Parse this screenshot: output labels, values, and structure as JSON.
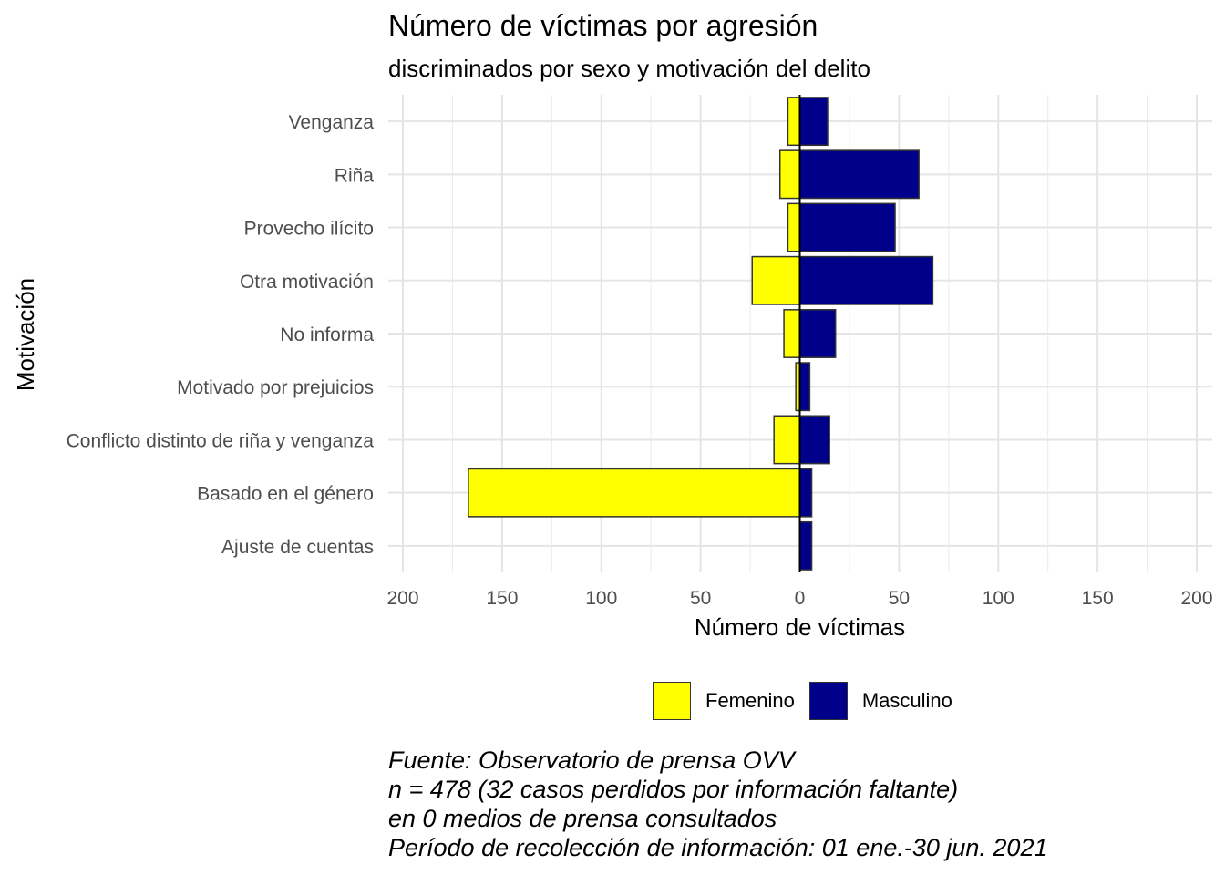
{
  "title": "Número de víctimas por agresión",
  "subtitle": "discriminados por sexo y motivación del delito",
  "chart_data": {
    "type": "bar",
    "orientation": "horizontal-diverging",
    "categories": [
      "Venganza",
      "Riña",
      "Provecho ilícito",
      "Otra motivación",
      "No informa",
      "Motivado por prejuicios",
      "Conflicto distinto de riña y venganza",
      "Basado en el género",
      "Ajuste de cuentas"
    ],
    "series": [
      {
        "name": "Femenino",
        "color": "#FFFF00",
        "values": [
          -6,
          -10,
          -6,
          -24,
          -8,
          -2,
          -13,
          -167,
          0
        ]
      },
      {
        "name": "Masculino",
        "color": "#00008B",
        "values": [
          14,
          60,
          48,
          67,
          18,
          5,
          15,
          6,
          6
        ]
      }
    ],
    "xlabel": "Número de víctimas",
    "ylabel": "Motivación",
    "xlim": [
      -200,
      200
    ],
    "xticks": [
      -200,
      -150,
      -100,
      -50,
      0,
      50,
      100,
      150,
      200
    ],
    "xtick_labels": [
      "200",
      "150",
      "100",
      "50",
      "0",
      "50",
      "100",
      "150",
      "200"
    ],
    "grid": true,
    "legend_position": "bottom"
  },
  "legend": {
    "femenino": "Femenino",
    "masculino": "Masculino",
    "femenino_color": "#FFFF00",
    "masculino_color": "#00008B"
  },
  "caption": {
    "line1": "Fuente: Observatorio de prensa OVV",
    "line2": "n = 478 (32 casos perdidos por información faltante)",
    "line3": "en 0 medios de prensa consultados",
    "line4": "Período de recolección de información: 01 ene.-30 jun. 2021"
  }
}
